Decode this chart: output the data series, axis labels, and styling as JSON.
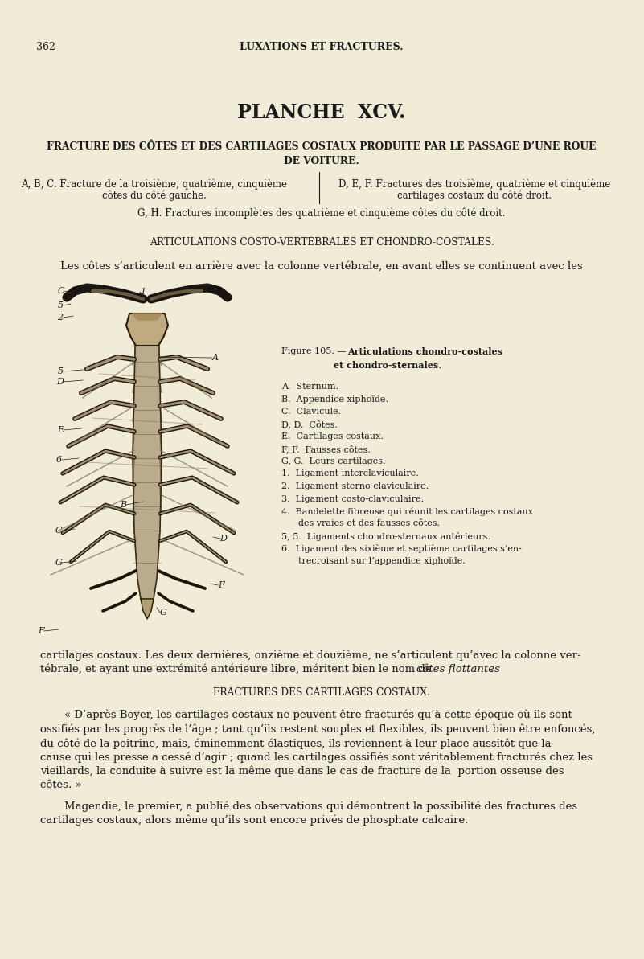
{
  "bg_color": "#f0ecd8",
  "page_num": "362",
  "header": "LUXATIONS ET FRACTURES.",
  "title": "PLANCHE  XCV.",
  "subtitle1": "FRACTURE DES CÔTES ET DES CARTILAGES COSTAUX PRODUITE PAR LE PASSAGE D’UNE ROUE",
  "subtitle2": "DE VOITURE.",
  "caption_left1": "A, B, C. Fracture de la troisième, quatrième, cinquième",
  "caption_left2": "côtes du côté gauche.",
  "caption_right1": "D, E, F. Fractures des troisième, quatrième et cinquième",
  "caption_right2": "cartilages costaux du côté droit.",
  "caption_center": "G, H. Fractures incomplètes des quatrième et cinquième côtes du côté droit.",
  "section_heading": "ARTICULATIONS COSTO-VERTÉBRALES ET CHONDRO-COSTALES.",
  "intro_text": "Les côtes s’articulent en arrière avec la colonne vertébrale, en avant elles se continuent avec les",
  "fig_caption_prefix": "Figure 105. — ",
  "fig_caption_bold": "Articulations chondro-costales",
  "fig_caption_line2_bold": "et chondro-sternales.",
  "legend_items": [
    "A.  Sternum.",
    "B.  Appendice xiphoïde.",
    "C.  Clavicule.",
    "D, D.  Côtes.",
    "E.  Cartilages costaux.",
    "F, F.  Fausses côtes.",
    "G, G.  Leurs cartilages.",
    "1.  Ligament interclaviculaire.",
    "2.  Ligament sterno-claviculaire.",
    "3.  Ligament costo-claviculaire.",
    "4.  Bandelette fibreuse qui réunit les cartilages costaux",
    "      des vraies et des fausses côtes.",
    "5, 5.  Ligaments chondro-sternaux antérieurs.",
    "6.  Ligament des sixième et septième cartilages s’en-",
    "      trecroisant sur l’appendice xiphoïde."
  ],
  "cont_line1": "cartilages costaux. Les deux dernières, onzième et douzième, ne s’articulent qu’avec la colonne ver-",
  "cont_line2a": "tébrale, et ayant une extrémité antérieure libre, méritent bien le nom de ",
  "cont_line2b": "côtes flottantes",
  "cont_line2c": ".",
  "section2_heading": "FRACTURES DES CARTILAGES COSTAUX.",
  "body_lines": [
    "« D’après Boyer, les cartilages costaux ne peuvent être fracturés qu’à cette époque où ils sont",
    "ossifiés par les progrès de l’âge ; tant qu’ils restent souples et flexibles, ils peuvent bien être enfoncés,",
    "du côté de la poitrine, mais, éminemment élastiques, ils reviennent à leur place aussitôt que la",
    "cause qui les presse a cessé d’agir ; quand les cartilages ossifiés sont véritablement fracturés chez les",
    "vieillards, la conduite à suivre est la même que dans le cas de fracture de la  portion osseuse des",
    "côtes. »"
  ],
  "magendie_line1": "Magendie, le premier, a publié des observations qui démontrent la possibilité des fractures des",
  "magendie_line2": "cartilages costaux, alors même qu’ils sont encore privés de phosphate calcaire."
}
